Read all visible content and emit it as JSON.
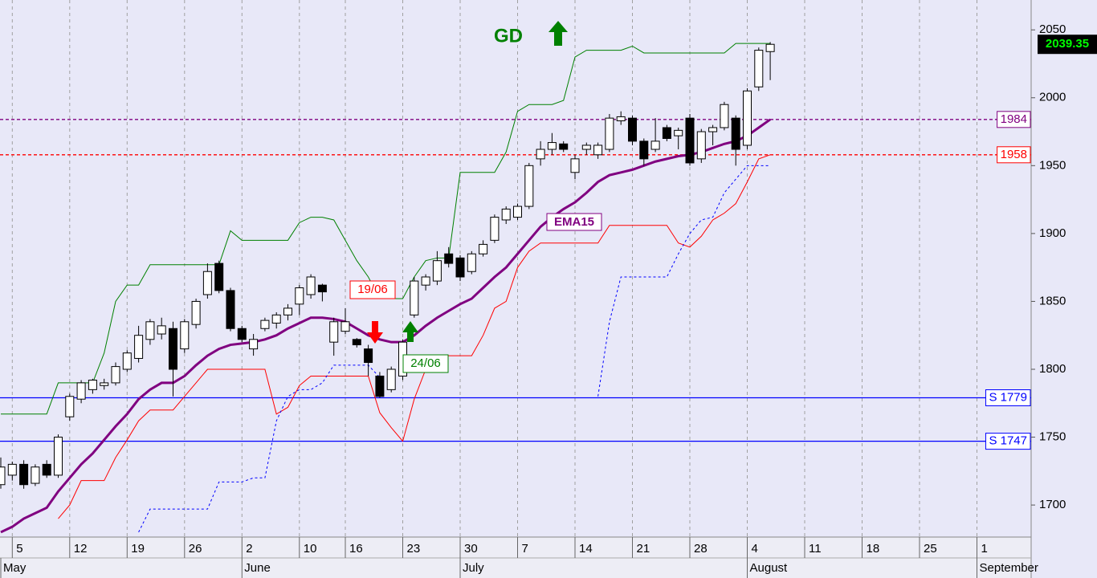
{
  "chart_data": {
    "type": "candlestick",
    "title": "GD",
    "categories": [
      null,
      "5",
      null,
      null,
      null,
      null,
      "12",
      null,
      null,
      null,
      null,
      "19",
      null,
      null,
      null,
      null,
      "26",
      null,
      null,
      null,
      null,
      "2",
      null,
      null,
      null,
      null,
      "10",
      null,
      null,
      null,
      "16",
      null,
      null,
      null,
      null,
      "23",
      null,
      null,
      null,
      null,
      "30",
      null,
      null,
      null,
      null,
      "7",
      null,
      null,
      null,
      null,
      "14",
      null,
      null,
      null,
      null,
      "21",
      null,
      null,
      null,
      null,
      "28",
      null,
      null,
      null,
      null,
      "4",
      null,
      null,
      null,
      null,
      "11",
      null,
      null,
      null,
      null,
      "18",
      null,
      null,
      null,
      null,
      "25",
      null,
      null,
      null,
      null,
      "1",
      null,
      null,
      null,
      null
    ],
    "months": [
      "May",
      null,
      null,
      null,
      null,
      null,
      null,
      null,
      null,
      null,
      null,
      null,
      null,
      null,
      null,
      null,
      null,
      null,
      null,
      null,
      null,
      "June",
      null,
      null,
      null,
      null,
      null,
      null,
      null,
      null,
      null,
      null,
      null,
      null,
      null,
      null,
      null,
      null,
      null,
      null,
      "July",
      null,
      null,
      null,
      null,
      null,
      null,
      null,
      null,
      null,
      null,
      null,
      null,
      null,
      null,
      null,
      null,
      null,
      null,
      null,
      null,
      null,
      null,
      null,
      null,
      "August",
      null,
      null,
      null,
      null,
      null,
      null,
      null,
      null,
      null,
      null,
      null,
      null,
      null,
      null,
      null,
      null,
      null,
      null,
      null,
      "September",
      null,
      null,
      null,
      null
    ],
    "open": [
      1715,
      1722,
      1730,
      1716,
      1730,
      1722,
      1765,
      1778,
      1785,
      1788,
      1790,
      1800,
      1808,
      1822,
      1826,
      1830,
      1815,
      1833,
      1855,
      1878,
      1858,
      1830,
      1815,
      1830,
      1834,
      1840,
      1848,
      1855,
      1862,
      1820,
      1828,
      1822,
      1815,
      1795,
      1785,
      1795,
      1840,
      1862,
      1865,
      1885,
      1882,
      1872,
      1885,
      1895,
      1910,
      1912,
      1920,
      1955,
      1962,
      1966,
      1945,
      1962,
      1958,
      1962,
      1983,
      1985,
      1968,
      1962,
      1978,
      1972,
      1985,
      1955,
      1975,
      1978,
      1985,
      1965,
      2008,
      2034,
      null,
      null,
      null,
      null,
      null,
      null,
      null,
      null,
      null,
      null,
      null,
      null,
      null,
      null,
      null,
      null,
      null,
      null,
      null,
      null,
      null,
      null
    ],
    "high": [
      1735,
      1732,
      1733,
      1730,
      1733,
      1752,
      1782,
      1792,
      1793,
      1793,
      1805,
      1814,
      1832,
      1837,
      1838,
      1835,
      1837,
      1852,
      1878,
      1880,
      1860,
      1832,
      1826,
      1838,
      1842,
      1848,
      1862,
      1870,
      1863,
      1838,
      1845,
      1823,
      1818,
      1798,
      1802,
      1822,
      1868,
      1870,
      1887,
      1890,
      1884,
      1887,
      1895,
      1914,
      1920,
      1922,
      1952,
      1968,
      1974,
      1968,
      1958,
      1967,
      1967,
      1988,
      1990,
      1987,
      1970,
      1985,
      1980,
      1978,
      1988,
      1977,
      1980,
      1997,
      1987,
      2007,
      2037,
      2041,
      null,
      null,
      null,
      null,
      null,
      null,
      null,
      null,
      null,
      null,
      null,
      null,
      null,
      null,
      null,
      null,
      null,
      null,
      null,
      null,
      null,
      null
    ],
    "low": [
      1712,
      1718,
      1712,
      1714,
      1720,
      1720,
      1762,
      1775,
      1782,
      1785,
      1788,
      1798,
      1805,
      1818,
      1822,
      1780,
      1812,
      1830,
      1852,
      1856,
      1828,
      1820,
      1810,
      1828,
      1830,
      1836,
      1840,
      1852,
      1850,
      1810,
      1826,
      1816,
      1795,
      1779,
      1783,
      1792,
      1838,
      1858,
      1862,
      1875,
      1865,
      1870,
      1883,
      1893,
      1907,
      1910,
      1918,
      1950,
      1958,
      1960,
      1940,
      1958,
      1955,
      1960,
      1980,
      1965,
      1950,
      1960,
      1968,
      1962,
      1950,
      1952,
      1965,
      1976,
      1950,
      1962,
      2005,
      2013,
      null,
      null,
      null,
      null,
      null,
      null,
      null,
      null,
      null,
      null,
      null,
      null,
      null,
      null,
      null,
      null,
      null,
      null,
      null,
      null,
      null,
      null
    ],
    "close": [
      1728,
      1730,
      1715,
      1728,
      1722,
      1750,
      1780,
      1790,
      1792,
      1790,
      1802,
      1812,
      1825,
      1835,
      1832,
      1800,
      1835,
      1850,
      1872,
      1858,
      1830,
      1822,
      1822,
      1836,
      1840,
      1845,
      1860,
      1868,
      1857,
      1835,
      1835,
      1818,
      1805,
      1780,
      1800,
      1820,
      1865,
      1868,
      1880,
      1878,
      1868,
      1885,
      1892,
      1912,
      1918,
      1920,
      1950,
      1962,
      1967,
      1962,
      1955,
      1965,
      1965,
      1985,
      1986,
      1968,
      1955,
      1968,
      1970,
      1976,
      1952,
      1975,
      1978,
      1995,
      1962,
      2005,
      2035,
      2039.35,
      null,
      null,
      null,
      null,
      null,
      null,
      null,
      null,
      null,
      null,
      null,
      null,
      null,
      null,
      null,
      null,
      null,
      null,
      null,
      null,
      null,
      null
    ],
    "series": [
      {
        "name": "EMA15",
        "color": "#800080",
        "width": 3,
        "dash": "none",
        "values": [
          1680,
          1684,
          1690,
          1694,
          1698,
          1710,
          1720,
          1730,
          1738,
          1748,
          1758,
          1767,
          1778,
          1785,
          1790,
          1790,
          1795,
          1803,
          1810,
          1815,
          1818,
          1819,
          1820,
          1822,
          1825,
          1830,
          1834,
          1838,
          1838,
          1837,
          1835,
          1830,
          1825,
          1822,
          1820,
          1820,
          1825,
          1832,
          1838,
          1843,
          1848,
          1852,
          1860,
          1868,
          1875,
          1885,
          1895,
          1905,
          1912,
          1918,
          1923,
          1930,
          1938,
          1943,
          1945,
          1947,
          1950,
          1953,
          1955,
          1957,
          1958,
          1960,
          1963,
          1966,
          1968,
          1972,
          1978,
          1984,
          null,
          null,
          null,
          null,
          null,
          null,
          null,
          null,
          null,
          null,
          null,
          null,
          null,
          null,
          null,
          null,
          null,
          null,
          null,
          null,
          null,
          null
        ]
      },
      {
        "color": "#008000",
        "width": 1,
        "dash": "none",
        "values": [
          1767,
          1767,
          1767,
          1767,
          1767,
          1790,
          1790,
          1790,
          1790,
          1812,
          1850,
          1862,
          1862,
          1877,
          1877,
          1877,
          1877,
          1877,
          1877,
          1877,
          1902,
          1895,
          1895,
          1895,
          1895,
          1895,
          1908,
          1912,
          1912,
          1910,
          1895,
          1880,
          1868,
          1852,
          1852,
          1852,
          1868,
          1880,
          1882,
          1882,
          1945,
          1945,
          1945,
          1945,
          1960,
          1990,
          1995,
          1995,
          1995,
          1998,
          2030,
          2035,
          2035,
          2035,
          2035,
          2038,
          2033,
          2033,
          2033,
          2033,
          2033,
          2033,
          2033,
          2033,
          2040,
          2040,
          2040,
          2040,
          null,
          null,
          null,
          null,
          null,
          null,
          null,
          null,
          null,
          null,
          null,
          null,
          null,
          null,
          null,
          null,
          null,
          null,
          null,
          null,
          null,
          null
        ]
      },
      {
        "color": "#ff0000",
        "width": 1,
        "dash": "none",
        "values": [
          null,
          null,
          null,
          null,
          null,
          1690,
          1700,
          1718,
          1718,
          1718,
          1735,
          1748,
          1762,
          1770,
          1770,
          1770,
          1780,
          1790,
          1800,
          1800,
          1800,
          1800,
          1800,
          1800,
          1767,
          1772,
          1788,
          1795,
          1795,
          1795,
          1795,
          1795,
          1795,
          1768,
          1757,
          1747,
          1778,
          1800,
          1808,
          1810,
          1810,
          1810,
          1825,
          1845,
          1850,
          1875,
          1887,
          1893,
          1893,
          1893,
          1893,
          1893,
          1893,
          1906,
          1906,
          1906,
          1906,
          1906,
          1906,
          1893,
          1890,
          1898,
          1910,
          1915,
          1922,
          1938,
          1955,
          1958,
          null,
          null,
          null,
          null,
          null,
          null,
          null,
          null,
          null,
          null,
          null,
          null,
          null,
          null,
          null,
          null,
          null,
          null,
          null,
          null,
          null,
          null
        ]
      },
      {
        "color": "#0000ff",
        "width": 1,
        "dash": "3 3",
        "values": [
          null,
          null,
          null,
          null,
          null,
          null,
          null,
          null,
          null,
          null,
          null,
          null,
          1680,
          1697,
          1697,
          1697,
          1697,
          1697,
          1697,
          1717,
          1717,
          1717,
          1720,
          1720,
          1762,
          1780,
          1785,
          1785,
          1790,
          1803,
          1803,
          1803,
          1803,
          1794,
          null,
          null,
          null,
          null,
          null,
          null,
          null,
          null,
          null,
          null,
          null,
          null,
          null,
          null,
          null,
          null,
          null,
          null,
          1780,
          1835,
          1868,
          1868,
          1868,
          1868,
          1868,
          1885,
          1900,
          1910,
          1912,
          1930,
          1940,
          1950,
          1950,
          1950,
          null,
          null,
          null,
          null,
          null,
          null,
          null,
          null,
          null,
          null,
          null,
          null,
          null,
          null,
          null,
          null,
          null,
          null,
          null,
          null,
          null,
          null
        ]
      }
    ],
    "hlines": [
      {
        "value": 1984,
        "label": "1984",
        "color": "#800080",
        "dash": "4 3"
      },
      {
        "value": 1958,
        "label": "1958",
        "color": "#ff0000",
        "dash": "4 3"
      },
      {
        "value": 1779,
        "label": "S 1779",
        "color": "#0000ff",
        "dash": "none"
      },
      {
        "value": 1747,
        "label": "S 1747",
        "color": "#0000ff",
        "dash": "none"
      }
    ],
    "annotations": [
      "19/06",
      "24/06"
    ],
    "last_price": 2039.35,
    "ylim": [
      1677,
      2072
    ],
    "yticks": [
      1700,
      1750,
      1800,
      1850,
      1900,
      1950,
      2000,
      2050
    ],
    "candle_up_color": "#ffffff",
    "candle_down_color": "#000000"
  }
}
